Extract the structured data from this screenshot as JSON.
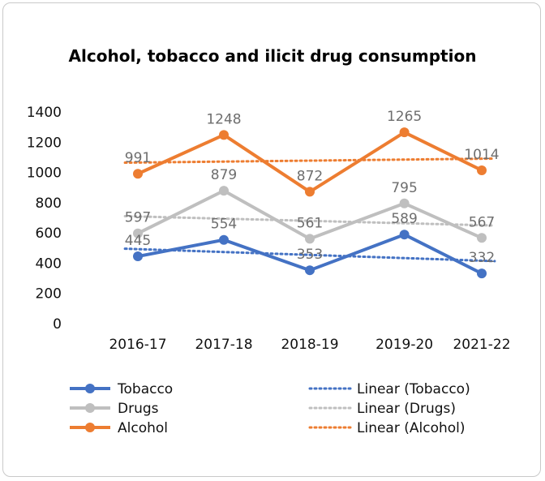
{
  "chart_data": {
    "type": "line",
    "title": "Alcohol, tobacco and ilicit drug consumption",
    "xlabel": "",
    "ylabel": "",
    "categories": [
      "2016-17",
      "2017-18",
      "2018-19",
      "2019-20",
      "2021-22"
    ],
    "x": [
      1,
      2,
      3,
      4.1,
      5
    ],
    "ylim": [
      0,
      1400
    ],
    "yticks": [
      0,
      200,
      400,
      600,
      800,
      1000,
      1200,
      1400
    ],
    "grid": false,
    "series": [
      {
        "name": "Tobacco",
        "values": [
          445,
          554,
          353,
          589,
          332
        ],
        "color": "#4472c4"
      },
      {
        "name": "Drugs",
        "values": [
          597,
          879,
          561,
          795,
          567
        ],
        "color": "#bfbfbf"
      },
      {
        "name": "Alcohol",
        "values": [
          991,
          1248,
          872,
          1265,
          1014
        ],
        "color": "#ed7d31"
      }
    ],
    "trendlines": [
      {
        "name": "Linear (Tobacco)",
        "series": "Tobacco",
        "color": "#4472c4"
      },
      {
        "name": "Linear (Drugs)",
        "series": "Drugs",
        "color": "#bfbfbf"
      },
      {
        "name": "Linear (Alcohol)",
        "series": "Alcohol",
        "color": "#ed7d31"
      }
    ],
    "legend_position": "bottom"
  }
}
